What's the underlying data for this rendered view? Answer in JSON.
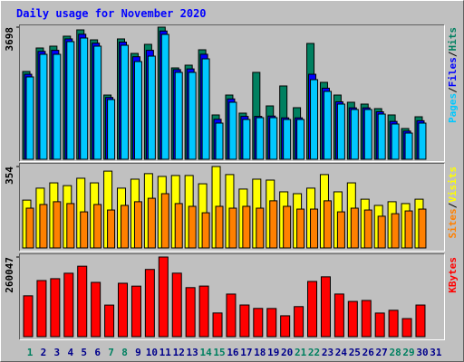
{
  "chart_data": [
    {
      "type": "bar",
      "title": "Daily usage for November 2020",
      "legend_separator": "/",
      "ylim": [
        0,
        3698
      ],
      "yticks": [
        3698
      ],
      "series": [
        {
          "name": "Hits",
          "color": "#008060",
          "values": [
            2457,
            3115,
            3166,
            3445,
            3622,
            3343,
            1798,
            3369,
            2963,
            3217,
            3698,
            2558,
            2634,
            3065,
            1241,
            1798,
            1292,
            2432,
            1494,
            2052,
            1444,
            3242,
            2153,
            1798,
            1596,
            1545,
            1418,
            1241,
            861,
            1190,
            null
          ]
        },
        {
          "name": "Files",
          "color": "#0000ff",
          "values": [
            2380,
            3020,
            3050,
            3370,
            3500,
            3250,
            1730,
            3280,
            2870,
            3050,
            3590,
            2510,
            2530,
            2940,
            1120,
            1690,
            1200,
            1200,
            1210,
            1160,
            1160,
            2380,
            1990,
            1610,
            1440,
            1440,
            1330,
            1060,
            790,
            1080,
            null
          ]
        },
        {
          "name": "Pages",
          "color": "#00c8ff",
          "values": [
            2305,
            2938,
            2938,
            3293,
            3394,
            3166,
            1672,
            3191,
            2735,
            2887,
            3495,
            2432,
            2432,
            2811,
            1013,
            1596,
            1114,
            1165,
            1165,
            1114,
            1114,
            2229,
            1900,
            1545,
            1393,
            1393,
            1266,
            988,
            734,
            1013,
            null
          ]
        }
      ]
    },
    {
      "type": "bar",
      "legend_separator": "/",
      "ylim": [
        0,
        354
      ],
      "yticks": [
        354
      ],
      "series": [
        {
          "name": "Visits",
          "color": "#ffff00",
          "values": [
            208,
            260,
            283,
            271,
            303,
            283,
            334,
            260,
            299,
            323,
            311,
            315,
            315,
            279,
            354,
            319,
            256,
            299,
            295,
            244,
            236,
            260,
            319,
            244,
            283,
            212,
            185,
            201,
            193,
            212,
            null
          ]
        },
        {
          "name": "Sites",
          "color": "#ff8000",
          "values": [
            173,
            189,
            201,
            193,
            157,
            189,
            165,
            185,
            201,
            216,
            236,
            193,
            181,
            153,
            181,
            173,
            181,
            173,
            205,
            181,
            169,
            169,
            205,
            157,
            173,
            165,
            138,
            149,
            161,
            169,
            null
          ]
        }
      ]
    },
    {
      "type": "bar",
      "ylim": [
        0,
        260047
      ],
      "yticks": [
        260047
      ],
      "categories": [
        "1",
        "2",
        "3",
        "4",
        "5",
        "6",
        "7",
        "8",
        "9",
        "10",
        "11",
        "12",
        "13",
        "14",
        "15",
        "16",
        "17",
        "18",
        "19",
        "20",
        "21",
        "22",
        "23",
        "24",
        "25",
        "26",
        "27",
        "28",
        "29",
        "30",
        "31"
      ],
      "category_colors": [
        "#008060",
        "#00008b",
        "#00008b",
        "#00008b",
        "#00008b",
        "#00008b",
        "#008060",
        "#008060",
        "#00008b",
        "#00008b",
        "#00008b",
        "#00008b",
        "#00008b",
        "#008060",
        "#008060",
        "#00008b",
        "#00008b",
        "#00008b",
        "#00008b",
        "#00008b",
        "#008060",
        "#008060",
        "#00008b",
        "#00008b",
        "#00008b",
        "#00008b",
        "#00008b",
        "#008060",
        "#008060",
        "#00008b",
        "#00008b"
      ],
      "series": [
        {
          "name": "KBytes",
          "color": "#ff0000",
          "values": [
            133412,
            183270,
            189355,
            207118,
            230064,
            177290,
            103145,
            174388,
            165021,
            219503,
            260047,
            207342,
            160118,
            165200,
            77310,
            139054,
            103400,
            92215,
            92008,
            68177,
            98120,
            180305,
            195440,
            139210,
            115030,
            118220,
            77102,
            86150,
            59033,
            103300,
            null
          ]
        }
      ]
    }
  ]
}
